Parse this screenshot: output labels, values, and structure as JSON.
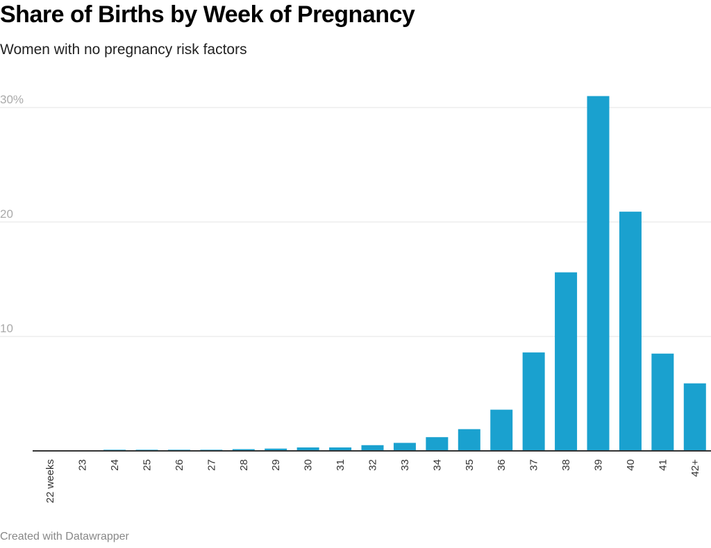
{
  "chart_data": {
    "type": "bar",
    "title": "Share of Births by Week of Pregnancy",
    "subtitle": "Women with no pregnancy risk factors",
    "categories": [
      "22 weeks",
      "23",
      "24",
      "25",
      "26",
      "27",
      "28",
      "29",
      "30",
      "31",
      "32",
      "33",
      "34",
      "35",
      "36",
      "37",
      "38",
      "39",
      "40",
      "41",
      "42+"
    ],
    "values": [
      0,
      0,
      0.1,
      0.1,
      0.1,
      0.1,
      0.15,
      0.2,
      0.3,
      0.3,
      0.5,
      0.7,
      1.2,
      1.9,
      3.6,
      8.6,
      15.6,
      31.0,
      20.9,
      8.5,
      5.9
    ],
    "ylim": [
      0,
      30
    ],
    "yticks": [
      {
        "value": 30,
        "label": "30%"
      },
      {
        "value": 20,
        "label": "20"
      },
      {
        "value": 10,
        "label": "10"
      }
    ],
    "grid": true,
    "bar_color": "#1aa1cf",
    "footer": "Created with Datawrapper"
  }
}
